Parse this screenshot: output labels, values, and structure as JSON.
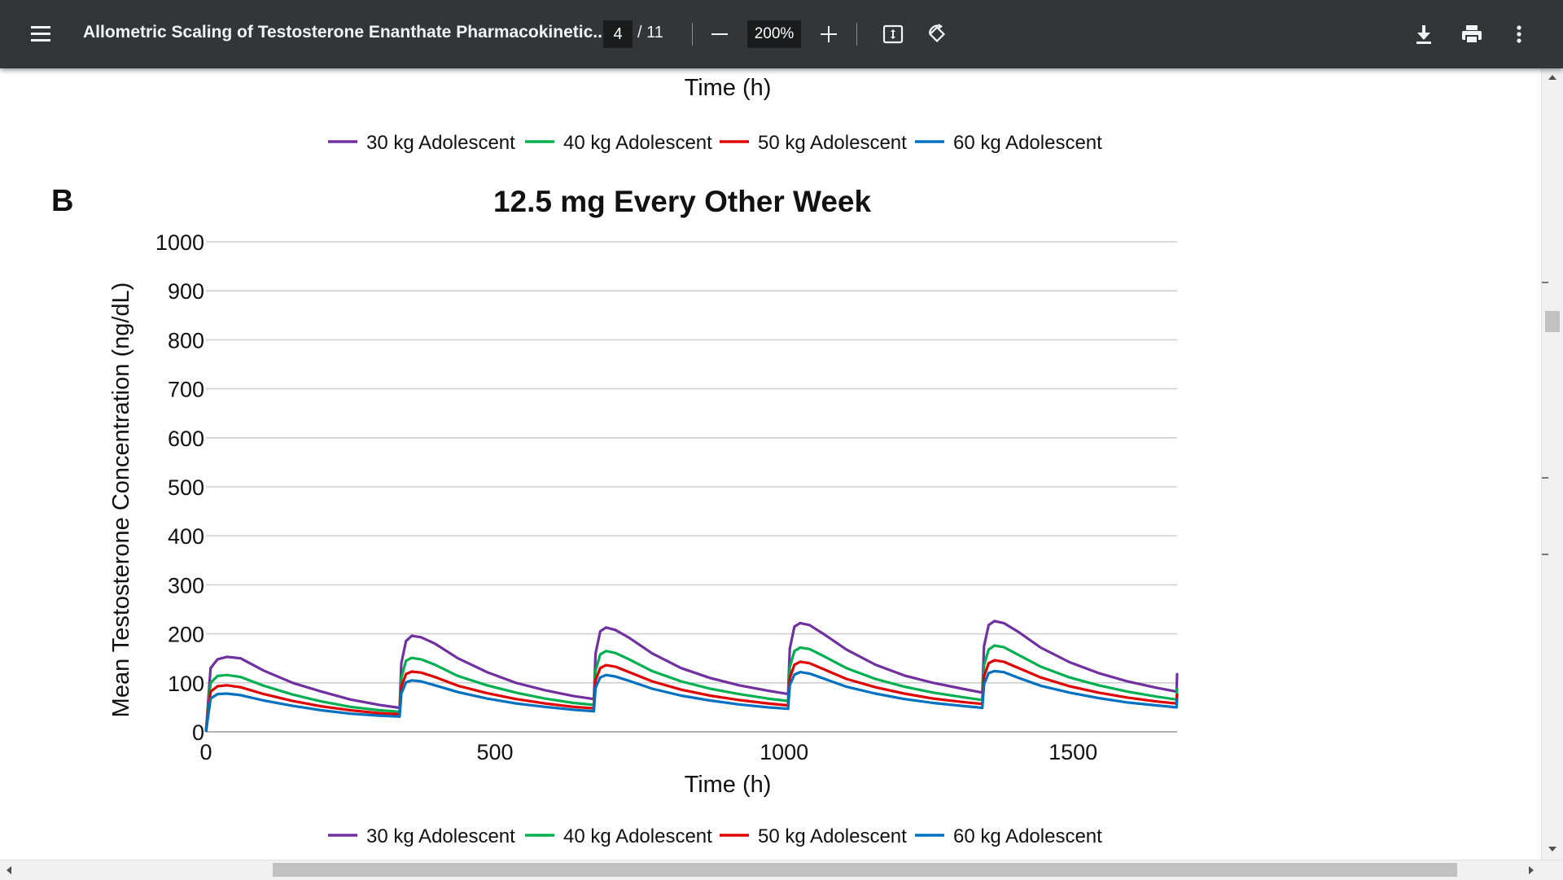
{
  "toolbar": {
    "title": "Allometric Scaling of Testosterone Enanthate Pharmacokinetic...",
    "page_current": "4",
    "page_total": "/ 11",
    "zoom": "200%",
    "icons": [
      "menu-icon",
      "zoom-out-icon",
      "zoom-in-icon",
      "fit-to-page-icon",
      "rotate-icon",
      "download-icon",
      "print-icon",
      "more-vert-icon"
    ]
  },
  "top_partial": {
    "xlabel": "Time (h)",
    "legend": [
      "30 kg Adolescent",
      "40 kg Adolescent",
      "50 kg Adolescent",
      "60 kg Adolescent"
    ]
  },
  "panel_label": "B",
  "chart_data": {
    "type": "line",
    "title": "12.5 mg Every Other Week",
    "xlabel": "Time (h)",
    "ylabel": "Mean Testosterone Concentration (ng/dL)",
    "xlim": [
      0,
      1680
    ],
    "ylim": [
      0,
      1000
    ],
    "xticks": [
      0,
      500,
      1000,
      1500
    ],
    "yticks": [
      0,
      100,
      200,
      300,
      400,
      500,
      600,
      700,
      800,
      900,
      1000
    ],
    "grid": "horizontal",
    "legend_position": "bottom",
    "dose_times": [
      0,
      336,
      672,
      1008,
      1344
    ],
    "series": [
      {
        "name": "30 kg Adolescent",
        "color": "#7030a0",
        "x": [
          0,
          8,
          20,
          36,
          60,
          100,
          150,
          200,
          250,
          300,
          335,
          338,
          346,
          356,
          372,
          396,
          436,
          486,
          536,
          586,
          636,
          671,
          674,
          682,
          692,
          708,
          732,
          772,
          822,
          872,
          922,
          972,
          1007,
          1010,
          1018,
          1028,
          1044,
          1068,
          1108,
          1158,
          1208,
          1258,
          1308,
          1343,
          1346,
          1354,
          1364,
          1380,
          1404,
          1444,
          1494,
          1544,
          1594,
          1644,
          1679,
          1680
        ],
        "y": [
          0,
          130,
          148,
          153,
          150,
          125,
          100,
          82,
          66,
          55,
          49,
          140,
          185,
          196,
          193,
          180,
          150,
          122,
          100,
          85,
          73,
          67,
          160,
          205,
          213,
          208,
          192,
          160,
          130,
          110,
          95,
          84,
          77,
          170,
          215,
          222,
          218,
          200,
          168,
          137,
          115,
          100,
          88,
          80,
          175,
          218,
          226,
          222,
          205,
          172,
          142,
          120,
          103,
          90,
          82,
          120
        ]
      },
      {
        "name": "40 kg Adolescent",
        "color": "#00b050",
        "x": [
          0,
          8,
          20,
          36,
          60,
          100,
          150,
          200,
          250,
          300,
          335,
          338,
          346,
          356,
          372,
          396,
          436,
          486,
          536,
          586,
          636,
          671,
          674,
          682,
          692,
          708,
          732,
          772,
          822,
          872,
          922,
          972,
          1007,
          1010,
          1018,
          1028,
          1044,
          1068,
          1108,
          1158,
          1208,
          1258,
          1308,
          1343,
          1346,
          1354,
          1364,
          1380,
          1404,
          1444,
          1494,
          1544,
          1594,
          1644,
          1679,
          1680
        ],
        "y": [
          0,
          100,
          114,
          116,
          112,
          94,
          76,
          62,
          51,
          44,
          41,
          110,
          145,
          151,
          148,
          137,
          114,
          95,
          80,
          68,
          59,
          55,
          125,
          158,
          165,
          161,
          148,
          124,
          103,
          88,
          77,
          68,
          63,
          132,
          165,
          172,
          169,
          155,
          130,
          108,
          92,
          80,
          71,
          65,
          136,
          168,
          176,
          173,
          158,
          133,
          111,
          95,
          82,
          72,
          66,
          90
        ]
      },
      {
        "name": "50 kg Adolescent",
        "color": "#e00000",
        "x": [
          0,
          8,
          20,
          36,
          60,
          100,
          150,
          200,
          250,
          300,
          335,
          338,
          346,
          356,
          372,
          396,
          436,
          486,
          536,
          586,
          636,
          671,
          674,
          682,
          692,
          708,
          732,
          772,
          822,
          872,
          922,
          972,
          1007,
          1010,
          1018,
          1028,
          1044,
          1068,
          1108,
          1158,
          1208,
          1258,
          1308,
          1343,
          1346,
          1354,
          1364,
          1380,
          1404,
          1444,
          1494,
          1544,
          1594,
          1644,
          1679,
          1680
        ],
        "y": [
          0,
          82,
          93,
          95,
          91,
          77,
          63,
          52,
          44,
          38,
          36,
          92,
          118,
          123,
          121,
          112,
          94,
          79,
          67,
          58,
          51,
          48,
          105,
          130,
          136,
          133,
          122,
          103,
          86,
          74,
          65,
          58,
          54,
          110,
          137,
          143,
          140,
          128,
          108,
          91,
          78,
          68,
          61,
          57,
          113,
          140,
          146,
          143,
          131,
          111,
          93,
          80,
          70,
          62,
          58,
          78
        ]
      },
      {
        "name": "60 kg Adolescent",
        "color": "#0070c0",
        "x": [
          0,
          8,
          20,
          36,
          60,
          100,
          150,
          200,
          250,
          300,
          335,
          338,
          346,
          356,
          372,
          396,
          436,
          486,
          536,
          586,
          636,
          671,
          674,
          682,
          692,
          708,
          732,
          772,
          822,
          872,
          922,
          972,
          1007,
          1010,
          1018,
          1028,
          1044,
          1068,
          1108,
          1158,
          1208,
          1258,
          1308,
          1343,
          1346,
          1354,
          1364,
          1380,
          1404,
          1444,
          1494,
          1544,
          1594,
          1644,
          1679,
          1680
        ],
        "y": [
          0,
          68,
          77,
          78,
          75,
          64,
          53,
          44,
          37,
          33,
          31,
          78,
          101,
          105,
          103,
          95,
          81,
          68,
          58,
          51,
          45,
          42,
          90,
          111,
          116,
          113,
          104,
          88,
          74,
          64,
          56,
          50,
          47,
          95,
          117,
          122,
          119,
          109,
          92,
          78,
          67,
          59,
          53,
          49,
          97,
          120,
          124,
          122,
          111,
          94,
          80,
          69,
          60,
          54,
          50,
          68
        ]
      }
    ]
  },
  "scrollbars": {
    "vertical": "vertical-scrollbar",
    "horizontal": "horizontal-scrollbar"
  }
}
